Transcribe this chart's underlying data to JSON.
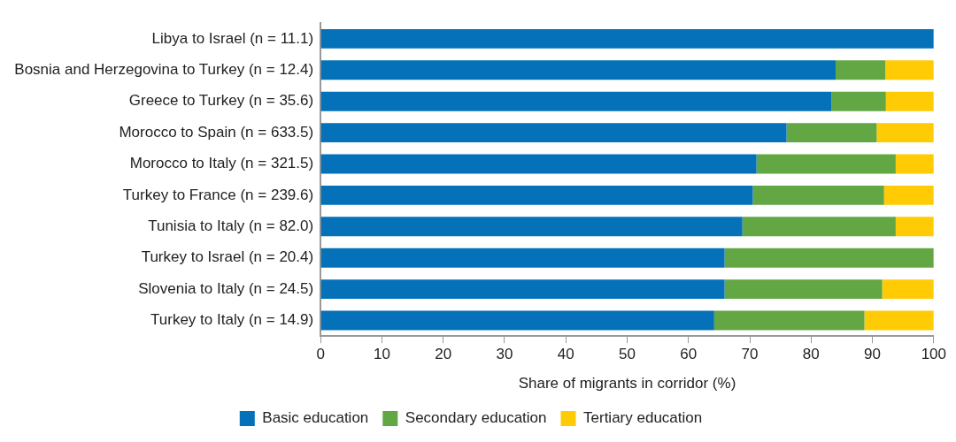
{
  "chart_data": {
    "type": "bar",
    "orientation": "horizontal",
    "stacked": true,
    "categories": [
      "Libya to Israel (n = 11.1)",
      "Bosnia and Herzegovina to Turkey (n = 12.4)",
      "Greece to Turkey (n = 35.6)",
      "Morocco to Spain (n = 633.5)",
      "Morocco to Italy (n = 321.5)",
      "Turkey to France (n = 239.6)",
      "Tunisia to Italy (n = 82.0)",
      "Turkey to Israel (n = 20.4)",
      "Slovenia to Italy (n = 24.5)",
      "Turkey to Italy (n = 14.9)"
    ],
    "series": [
      {
        "name": "Basic education",
        "color": "#0571b9",
        "values": [
          100,
          84.0,
          83.3,
          76.0,
          71.1,
          70.5,
          68.8,
          65.9,
          65.9,
          64.2
        ]
      },
      {
        "name": "Secondary education",
        "color": "#62a744",
        "values": [
          0,
          8.1,
          8.9,
          14.7,
          22.7,
          21.4,
          25.0,
          34.1,
          25.7,
          24.5
        ]
      },
      {
        "name": "Tertiary education",
        "color": "#fecb05",
        "values": [
          0,
          7.9,
          7.8,
          9.3,
          6.2,
          8.1,
          6.2,
          0,
          8.4,
          11.3
        ]
      }
    ],
    "xlabel": "Share of migrants in corridor (%)",
    "xlim": [
      0,
      100
    ],
    "xticks": [
      0,
      10,
      20,
      30,
      40,
      50,
      60,
      70,
      80,
      90,
      100
    ],
    "grid": false,
    "legend": "bottom"
  }
}
